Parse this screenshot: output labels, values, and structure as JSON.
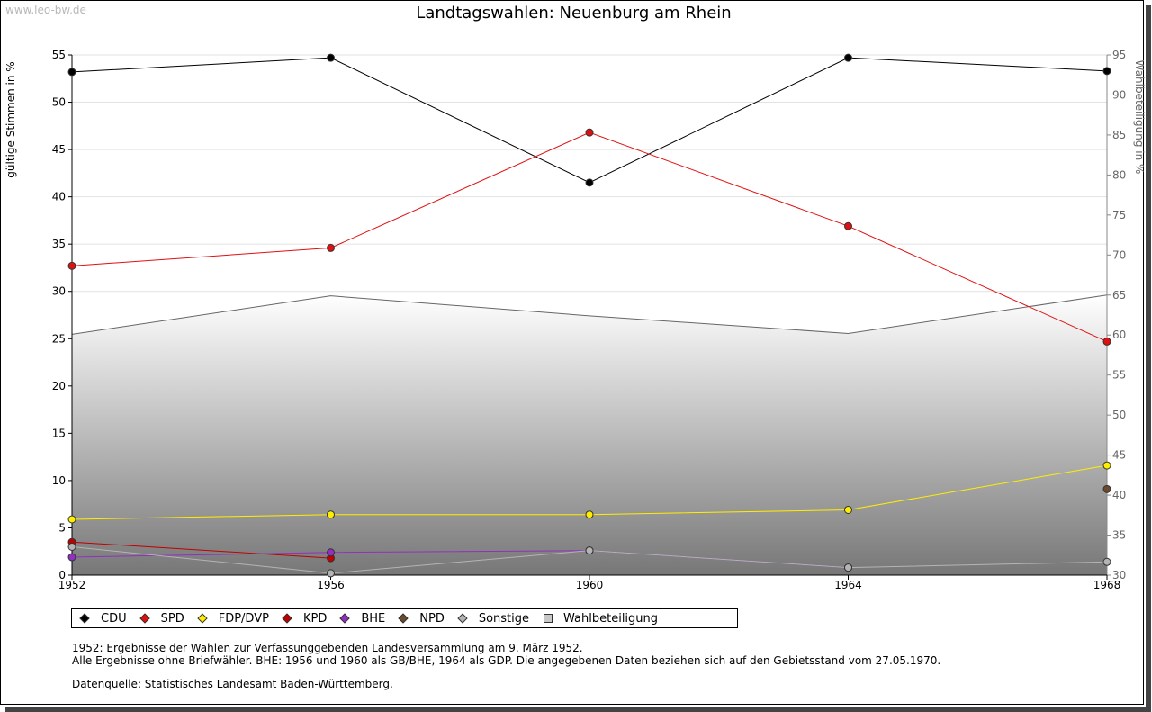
{
  "watermark": "www.leo-bw.de",
  "title": "Landtagswahlen: Neuenburg am Rhein",
  "chart_data": {
    "type": "line",
    "title": "Landtagswahlen: Neuenburg am Rhein",
    "xlabel": "",
    "ylabel": "gültige Stimmen in %",
    "y2label": "Wahlbeteiligung in %",
    "x": [
      "1952",
      "1956",
      "1960",
      "1964",
      "1968"
    ],
    "ylim": [
      0,
      55
    ],
    "y2lim": [
      30,
      95
    ],
    "yticks": [
      "0",
      "5",
      "10",
      "15",
      "20",
      "25",
      "30",
      "35",
      "40",
      "45",
      "50",
      "55"
    ],
    "y2ticks": [
      "30",
      "35",
      "40",
      "45",
      "50",
      "55",
      "60",
      "65",
      "70",
      "75",
      "80",
      "85",
      "90",
      "95"
    ],
    "grid": true,
    "legend_position": "bottom",
    "series": [
      {
        "name": "CDU",
        "color": "#000000",
        "values": [
          53.2,
          54.7,
          41.5,
          54.7,
          53.3
        ]
      },
      {
        "name": "SPD",
        "color": "#e01010",
        "values": [
          32.7,
          34.6,
          46.8,
          36.9,
          24.7
        ]
      },
      {
        "name": "FDP/DVP",
        "color": "#ffee00",
        "values": [
          5.9,
          6.4,
          6.4,
          6.9,
          11.6
        ]
      },
      {
        "name": "KPD",
        "color": "#c00000",
        "values": [
          3.5,
          1.8,
          null,
          null,
          null
        ]
      },
      {
        "name": "BHE",
        "color": "#9030c0",
        "values": [
          1.9,
          2.4,
          2.6,
          0.8,
          null
        ]
      },
      {
        "name": "NPD",
        "color": "#6b4a2e",
        "values": [
          null,
          null,
          null,
          null,
          9.1
        ]
      },
      {
        "name": "Sonstige",
        "color": "#b4b4b4",
        "values": [
          3.0,
          0.2,
          2.6,
          0.8,
          1.4
        ]
      },
      {
        "name": "Wahlbeteiligung",
        "color": "#c8c8c8",
        "axis": "right",
        "type": "area",
        "values": [
          60.1,
          64.9,
          62.4,
          60.2,
          65.0
        ]
      }
    ]
  },
  "legend": [
    "CDU",
    "SPD",
    "FDP/DVP",
    "KPD",
    "BHE",
    "NPD",
    "Sonstige",
    "Wahlbeteiligung"
  ],
  "notes": {
    "line1": "1952: Ergebnisse der Wahlen zur Verfassunggebenden Landesversammlung am 9. März 1952.",
    "line2": "Alle Ergebnisse ohne Briefwähler. BHE: 1956 und 1960 als GB/BHE, 1964 als GDP. Die angegebenen Daten beziehen sich auf den Gebietsstand vom 27.05.1970.",
    "source": "Datenquelle: Statistisches Landesamt Baden-Württemberg."
  }
}
